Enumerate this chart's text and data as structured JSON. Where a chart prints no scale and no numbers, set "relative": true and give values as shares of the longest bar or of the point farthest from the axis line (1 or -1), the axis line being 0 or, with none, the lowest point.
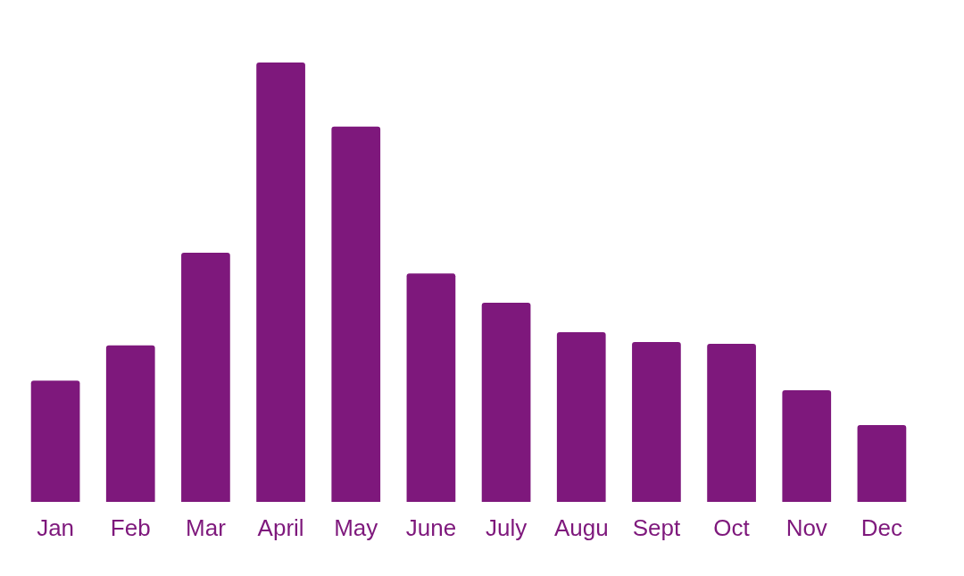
{
  "chart_data": {
    "type": "bar",
    "relative": true,
    "categories": [
      "Jan",
      "Feb",
      "Mar",
      "April",
      "May",
      "June",
      "July",
      "Augu",
      "Sept",
      "Oct",
      "Nov",
      "Dec"
    ],
    "values": [
      0.276,
      0.356,
      0.567,
      1,
      0.854,
      0.52,
      0.453,
      0.386,
      0.364,
      0.36,
      0.254,
      0.175
    ],
    "color": "#7e187c"
  }
}
